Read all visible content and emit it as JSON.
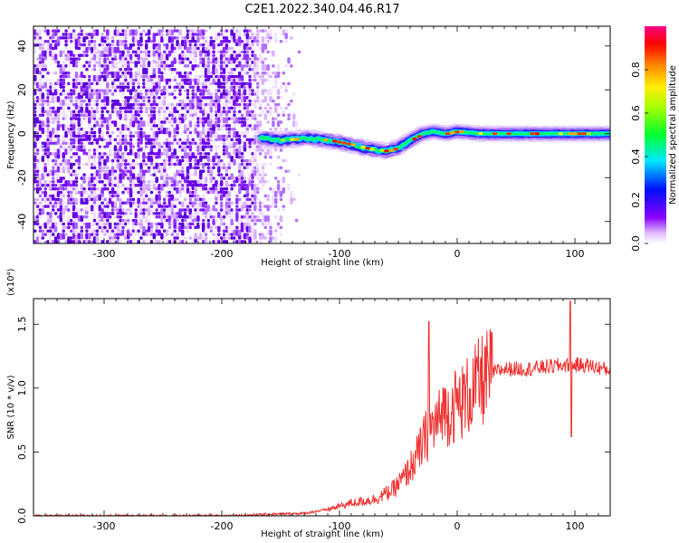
{
  "title": "C2E1.2022.340.04.46.R17",
  "chart_data": [
    {
      "type": "heatmap",
      "xlabel": "Height of straight line (km)",
      "ylabel": "Frequency (Hz)",
      "xlim": [
        -360,
        130
      ],
      "ylim": [
        -50,
        49
      ],
      "x_ticks": [
        -300,
        -200,
        -100,
        0,
        100
      ],
      "y_ticks": [
        -40,
        -20,
        0,
        20,
        40
      ],
      "colorbar": {
        "label": "Normalized spectral amplitude",
        "range": [
          0.0,
          1.0
        ],
        "ticks": [
          0.0,
          0.2,
          0.4,
          0.6,
          0.8
        ],
        "colormap": "rainbow (magenta-blue-cyan-green-yellow-orange-red)"
      },
      "features": [
        {
          "name": "broadband noise",
          "x_range": [
            -360,
            -150
          ],
          "freq_range": [
            -50,
            49
          ],
          "amplitude": 0.05
        },
        {
          "name": "signal trace",
          "points": [
            [
              -165,
              -2
            ],
            [
              -150,
              -3
            ],
            [
              -130,
              -2
            ],
            [
              -110,
              -3
            ],
            [
              -90,
              -5
            ],
            [
              -75,
              -7
            ],
            [
              -60,
              -8
            ],
            [
              -48,
              -6
            ],
            [
              -40,
              -3
            ],
            [
              -30,
              0
            ],
            [
              -20,
              1
            ],
            [
              -10,
              0
            ],
            [
              0,
              1
            ],
            [
              20,
              0
            ],
            [
              50,
              0
            ],
            [
              80,
              0
            ],
            [
              100,
              0
            ],
            [
              130,
              0
            ]
          ],
          "amplitude": 0.6
        }
      ]
    },
    {
      "type": "line",
      "xlabel": "Height of straight line (km)",
      "ylabel": "SNR (10 * v/v)",
      "y_multiplier": "(x10⁴)",
      "xlim": [
        -360,
        130
      ],
      "ylim": [
        0,
        1.7
      ],
      "x_ticks": [
        -300,
        -200,
        -100,
        0,
        100
      ],
      "y_ticks": [
        0.0,
        0.5,
        1.0,
        1.5
      ],
      "series": [
        {
          "color": "#ee3333",
          "envelope": [
            [
              -360,
              0.0
            ],
            [
              -200,
              0.0
            ],
            [
              -130,
              0.02
            ],
            [
              -110,
              0.05
            ],
            [
              -90,
              0.1
            ],
            [
              -70,
              0.13
            ],
            [
              -55,
              0.2
            ],
            [
              -45,
              0.3
            ],
            [
              -35,
              0.45
            ],
            [
              -25,
              0.65
            ],
            [
              -15,
              0.75
            ],
            [
              -5,
              0.85
            ],
            [
              5,
              0.9
            ],
            [
              20,
              1.05
            ],
            [
              30,
              1.12
            ],
            [
              40,
              1.15
            ],
            [
              60,
              1.15
            ],
            [
              90,
              1.18
            ],
            [
              110,
              1.18
            ],
            [
              130,
              1.14
            ]
          ],
          "spikes": [
            [
              -24,
              1.52
            ],
            [
              96,
              1.68
            ],
            [
              97,
              0.62
            ],
            [
              -12,
              1.0
            ]
          ]
        }
      ]
    }
  ]
}
